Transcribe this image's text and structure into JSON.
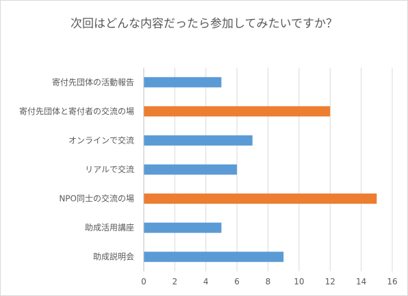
{
  "chart_data": {
    "type": "bar",
    "orientation": "horizontal",
    "title": "次回はどんな内容だったら参加してみたいですか？",
    "xlabel": "",
    "ylabel": "",
    "categories": [
      "寄付先団体の活動報告",
      "寄付先団体と寄付者の交流の場",
      "オンラインで交流",
      "リアルで交流",
      "NPO同士の交流の場",
      "助成活用講座",
      "助成説明会"
    ],
    "values": [
      5,
      12,
      7,
      6,
      15,
      5,
      9
    ],
    "bar_colors": [
      "#5b9bd5",
      "#ed7d31",
      "#5b9bd5",
      "#5b9bd5",
      "#ed7d31",
      "#5b9bd5",
      "#5b9bd5"
    ],
    "xlim": [
      0,
      16
    ],
    "xticks": [
      0,
      2,
      4,
      6,
      8,
      10,
      12,
      14,
      16
    ],
    "grid": true,
    "legend": "none"
  }
}
